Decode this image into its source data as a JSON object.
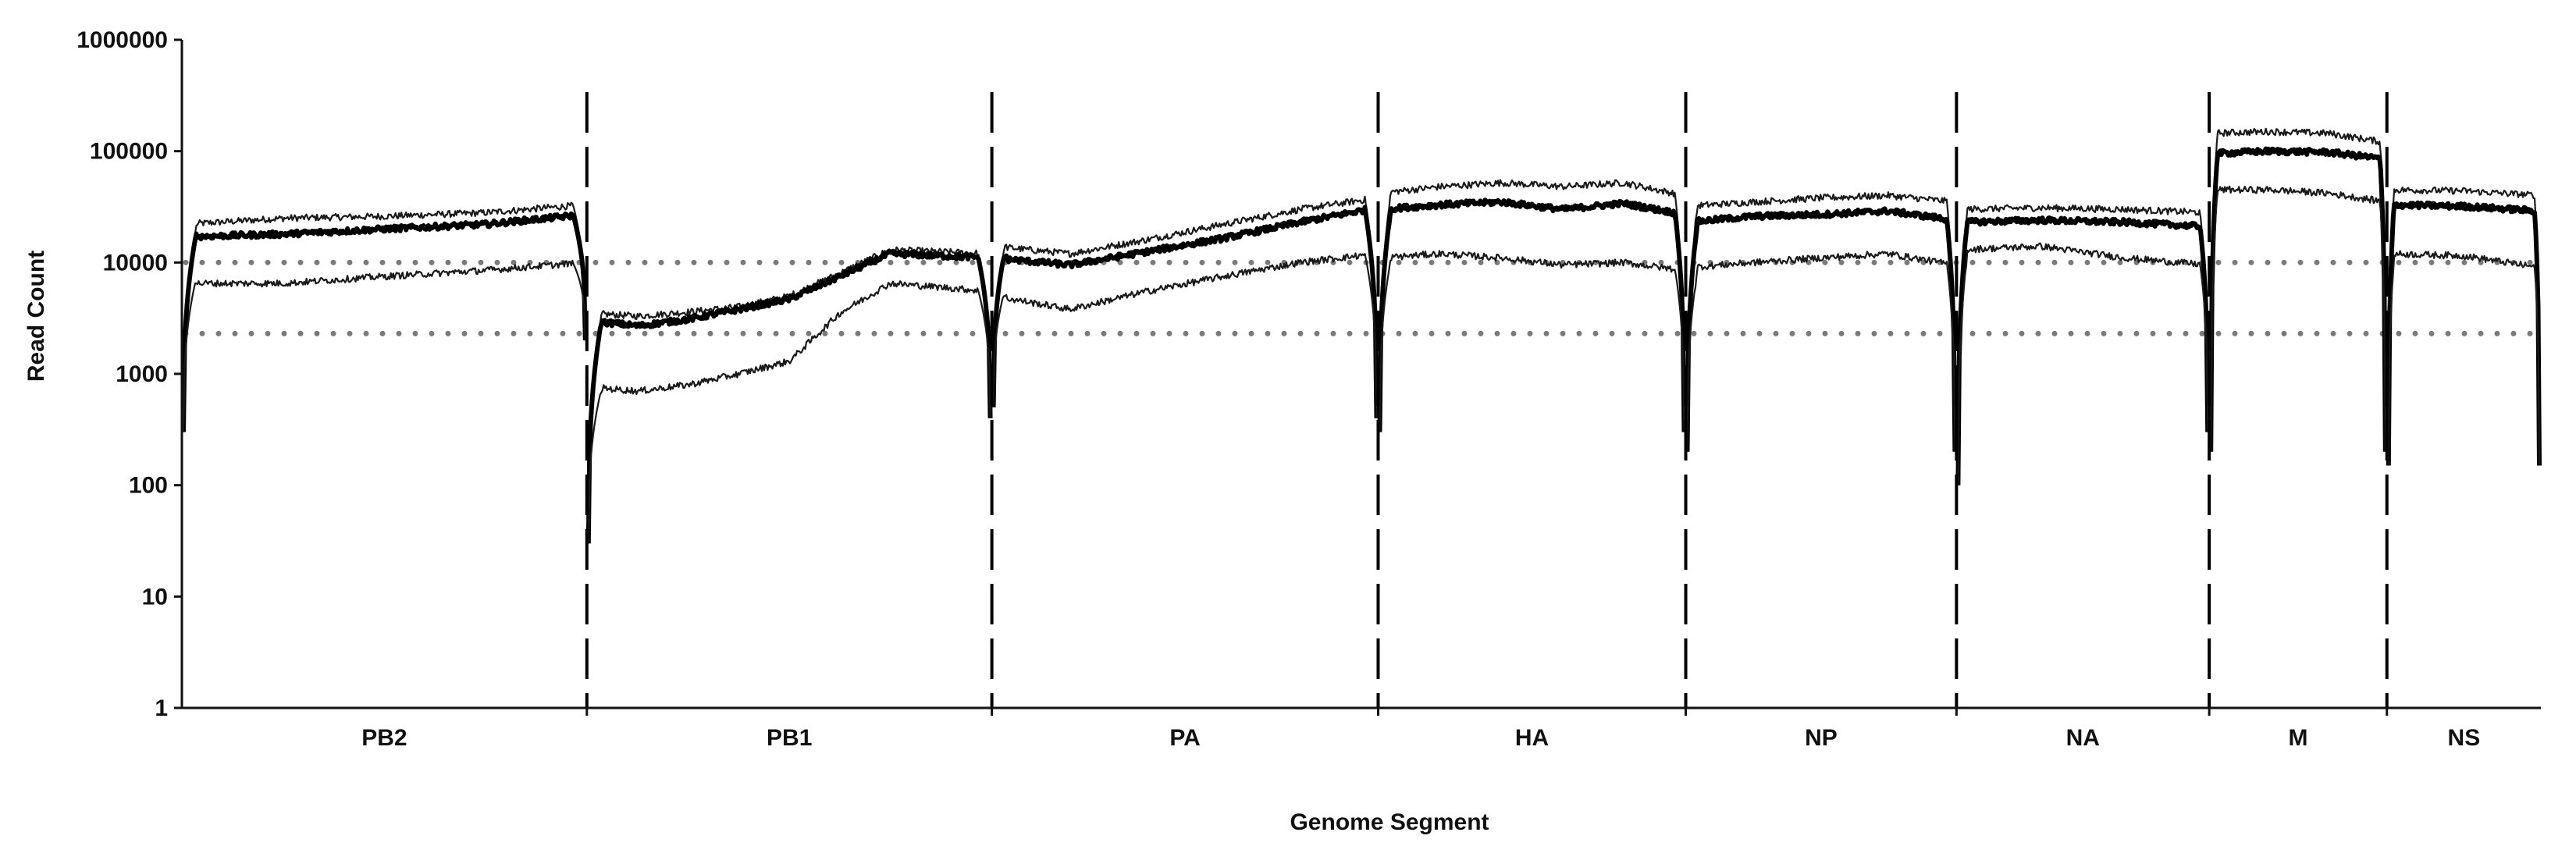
{
  "chart_data": {
    "type": "line",
    "title": "",
    "xlabel": "Genome Segment",
    "ylabel": "Read Count",
    "yscale": "log",
    "ylim": [
      1,
      1000000
    ],
    "yticks": [
      1,
      10,
      100,
      1000,
      10000,
      100000,
      1000000
    ],
    "ytick_labels": [
      "1",
      "10",
      "100",
      "1000",
      "10000",
      "100000",
      "1000000"
    ],
    "categories": [
      "PB2",
      "PB1",
      "PA",
      "HA",
      "NP",
      "NA",
      "M",
      "NS"
    ],
    "segment_widths": [
      2341,
      2341,
      2233,
      1778,
      1565,
      1461,
      1027,
      890
    ],
    "segment_boundary_style": "dashed vertical lines",
    "reference_lines": [
      {
        "value": 10000,
        "style": "dotted",
        "color": "#7a7a7a"
      },
      {
        "value": 2300,
        "style": "dotted",
        "color": "#7a7a7a"
      }
    ],
    "series": [
      {
        "color": "#1a1a1a",
        "width": "thin",
        "segments": [
          {
            "start": 300,
            "peak": 24000,
            "plateau": [
              22000,
              25000,
              26000,
              28000,
              33000
            ],
            "end": 2000
          },
          {
            "start": 30,
            "peak": 3800,
            "plateau": [
              3500,
              3300,
              3600,
              4000,
              5000,
              8000,
              13000,
              12500,
              12000
            ],
            "end": 400
          },
          {
            "start": 500,
            "peak": 17000,
            "plateau": [
              14000,
              12000,
              16000,
              22000,
              30000,
              38000
            ],
            "end": 400
          },
          {
            "start": 300,
            "peak": 40000,
            "plateau": [
              42000,
              48000,
              52000,
              48000,
              52000,
              40000
            ],
            "end": 300
          },
          {
            "start": 200,
            "peak": 28000,
            "plateau": [
              32000,
              35000,
              38000,
              40000,
              35000
            ],
            "end": 200
          },
          {
            "start": 100,
            "peak": 28000,
            "plateau": [
              30000,
              31000,
              30000,
              28000
            ],
            "end": 300
          },
          {
            "start": 200,
            "peak": 120000,
            "plateau": [
              145000,
              150000,
              145000,
              120000
            ],
            "end": 200
          },
          {
            "start": 150,
            "peak": 40000,
            "plateau": [
              45000,
              44000,
              40000
            ],
            "end": 150
          }
        ]
      },
      {
        "color": "#000000",
        "width": "thick",
        "segments": [
          {
            "start": 300,
            "peak": 21000,
            "plateau": [
              17000,
              18000,
              20000,
              22000,
              27000
            ],
            "end": 2000
          },
          {
            "start": 30,
            "peak": 3400,
            "plateau": [
              3000,
              2700,
              3100,
              3800,
              4700,
              7500,
              12000,
              11500,
              11000
            ],
            "end": 400
          },
          {
            "start": 500,
            "peak": 15000,
            "plateau": [
              11000,
              9500,
              12500,
              16500,
              23000,
              31000
            ],
            "end": 400
          },
          {
            "start": 300,
            "peak": 28000,
            "plateau": [
              30000,
              33000,
              35000,
              30000,
              34000,
              27000
            ],
            "end": 300
          },
          {
            "start": 200,
            "peak": 20000,
            "plateau": [
              23000,
              26000,
              27000,
              29000,
              24000
            ],
            "end": 200
          },
          {
            "start": 100,
            "peak": 22000,
            "plateau": [
              23000,
              24000,
              23000,
              21000
            ],
            "end": 300
          },
          {
            "start": 200,
            "peak": 85000,
            "plateau": [
              95000,
              100000,
              98000,
              85000
            ],
            "end": 200
          },
          {
            "start": 150,
            "peak": 30000,
            "plateau": [
              33000,
              32000,
              29000
            ],
            "end": 150
          }
        ]
      },
      {
        "color": "#1a1a1a",
        "width": "thin",
        "segments": [
          {
            "start": 300,
            "peak": 8000,
            "plateau": [
              6500,
              6500,
              7500,
              8500,
              10000
            ],
            "end": 2000
          },
          {
            "start": 30,
            "peak": 800,
            "plateau": [
              760,
              700,
              800,
              1000,
              1300,
              3500,
              6500,
              6000,
              5500
            ],
            "end": 400
          },
          {
            "start": 500,
            "peak": 6500,
            "plateau": [
              5000,
              3800,
              5500,
              7500,
              10000,
              12000
            ],
            "end": 400
          },
          {
            "start": 300,
            "peak": 10000,
            "plateau": [
              11000,
              12000,
              11000,
              9500,
              10000,
              8500
            ],
            "end": 300
          },
          {
            "start": 200,
            "peak": 7500,
            "plateau": [
              9000,
              10000,
              11000,
              12000,
              9500
            ],
            "end": 200
          },
          {
            "start": 100,
            "peak": 11000,
            "plateau": [
              13000,
              14000,
              11000,
              9500
            ],
            "end": 300
          },
          {
            "start": 200,
            "peak": 38000,
            "plateau": [
              45000,
              45000,
              42000,
              35000
            ],
            "end": 200
          },
          {
            "start": 150,
            "peak": 10000,
            "plateau": [
              12000,
              11500,
              9000
            ],
            "end": 150
          }
        ]
      }
    ]
  }
}
